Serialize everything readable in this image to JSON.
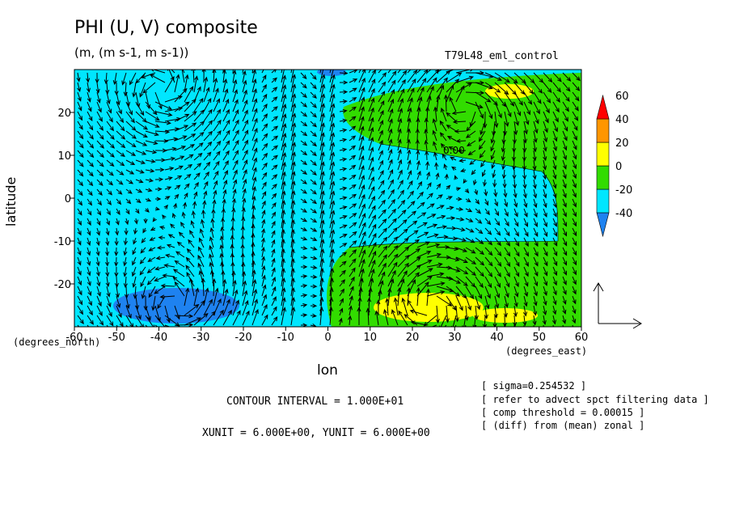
{
  "title": "PHI (U, V) composite",
  "subtitle": "(m, (m s-1, m s-1))",
  "run_label": "T79L48_eml_control",
  "ylabel": "latitude",
  "xlabel": "lon",
  "y_unit_label": "(degrees_north)",
  "x_unit_label": "(degrees_east)",
  "contour_interval": "CONTOUR INTERVAL = 1.000E+01",
  "units_line": "XUNIT = 6.000E+00, YUNIT = 6.000E+00",
  "notes": [
    "[ sigma=0.254532 ]",
    "[ refer to advect spct filtering data ]",
    "[ comp threshold = 0.00015 ]",
    "[ (diff) from (mean) zonal ]"
  ],
  "contour_label": "0.00",
  "chart_data": {
    "type": "heatmap",
    "title": "PHI (U, V) composite",
    "xlabel": "lon",
    "ylabel": "latitude",
    "xlim": [
      -60,
      60
    ],
    "ylim": [
      -30,
      30
    ],
    "x_ticks": [
      -60,
      -50,
      -40,
      -30,
      -20,
      -10,
      0,
      10,
      20,
      30,
      40,
      50,
      60
    ],
    "y_ticks": [
      -20,
      -10,
      0,
      10,
      20
    ],
    "colorbar": {
      "levels": [
        -40,
        -20,
        0,
        20,
        40,
        60
      ],
      "colors": [
        "#1e82f0",
        "#00e6ff",
        "#32dc00",
        "#ffff00",
        "#ff9600",
        "#ff0000"
      ]
    },
    "features": [
      {
        "kind": "low",
        "lon": -33,
        "lat": -25,
        "value": -25
      },
      {
        "kind": "high",
        "lon": 28,
        "lat": -25,
        "value": 25
      },
      {
        "kind": "high",
        "lon": 32,
        "lat": 22,
        "value": 20
      },
      {
        "kind": "high",
        "lon": 43,
        "lat": 23,
        "value": 30
      },
      {
        "kind": "high",
        "lon": 55,
        "lat": -20,
        "value": 10
      }
    ],
    "vector_unit_arrow": {
      "u": 6,
      "v": 6
    }
  }
}
